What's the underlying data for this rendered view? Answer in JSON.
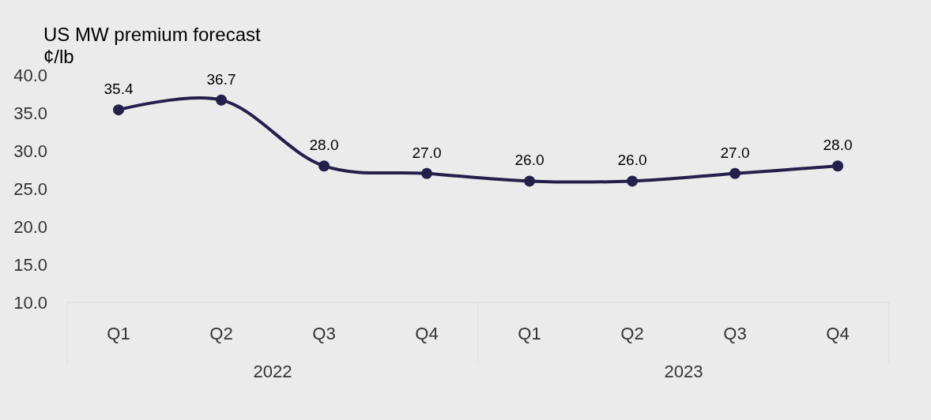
{
  "chart_data": {
    "type": "line",
    "title": "US MW premium forecast",
    "ylabel": "¢/lb",
    "categories": [
      "Q1",
      "Q2",
      "Q3",
      "Q4",
      "Q1",
      "Q2",
      "Q3",
      "Q4"
    ],
    "annotations": [
      "2022",
      "2023"
    ],
    "series": [
      {
        "color": "#241f4b",
        "values": [
          35.4,
          36.7,
          28.0,
          27.0,
          26.0,
          26.0,
          27.0,
          28.0
        ],
        "value_labels": [
          "35.4",
          "36.7",
          "28.0",
          "27.0",
          "26.0",
          "26.0",
          "27.0",
          "28.0"
        ]
      }
    ],
    "ylim": [
      10,
      40
    ],
    "yticks": [
      {
        "value": 10,
        "label": "10.0"
      },
      {
        "value": 15,
        "label": "15.0"
      },
      {
        "value": 20,
        "label": "20.0"
      },
      {
        "value": 25,
        "label": "25.0"
      },
      {
        "value": 30,
        "label": "30.0"
      },
      {
        "value": 35,
        "label": "35.0"
      },
      {
        "value": 40,
        "label": "40.0"
      }
    ],
    "marker": "circle",
    "line_style": "solid",
    "grid": false
  }
}
